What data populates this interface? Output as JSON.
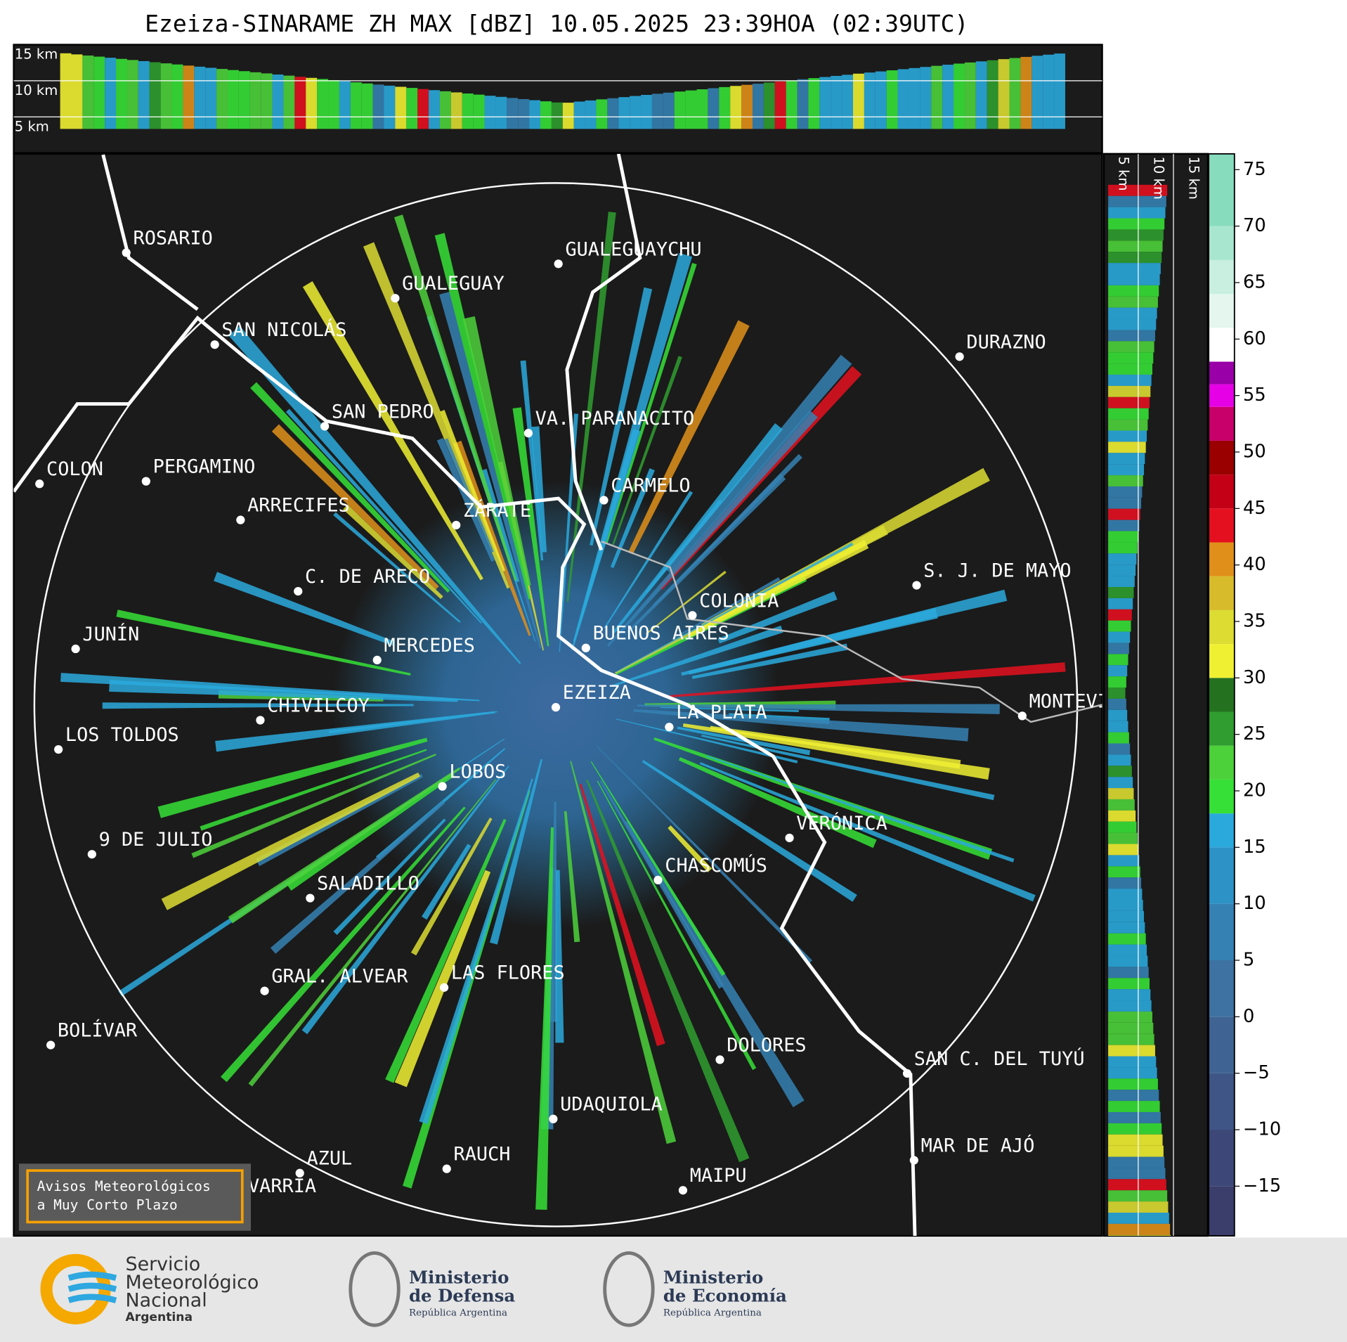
{
  "title": "Ezeiza-SINARAME ZH MAX [dBZ] 10.05.2025 23:39HOA (02:39UTC)",
  "top_panel": {
    "height_labels": [
      "15 km",
      "10 km",
      "5 km"
    ]
  },
  "side_panel": {
    "height_labels": [
      "5 km",
      "10 km",
      "15 km"
    ]
  },
  "cities": [
    "ROSARIO",
    "GUALEGUAYCHU",
    "GUALEGUAY",
    "SAN NICOLÁS",
    "DURAZNO",
    "SAN PEDRO",
    "VA. PARANACITO",
    "COLON",
    "PERGAMINO",
    "CARMELO",
    "ARRECIFES",
    "ZÁRATE",
    "C. DE ARECO",
    "S. J. DE MAYO",
    "COLONIA",
    "JUNÍN",
    "BUENOS AIRES",
    "MERCEDES",
    "MONTEVIDEO",
    "EZEIZA",
    "CHIVILCOY",
    "LA PLATA",
    "LOS TOLDOS",
    "LOBOS",
    "VERÓNICA",
    "9 DE JULIO",
    "CHASCOMÚS",
    "SALADILLO",
    "GRAL. ALVEAR",
    "LAS FLORES",
    "BOLÍVAR",
    "DOLORES",
    "SAN C. DEL TUYÚ",
    "UDAQUIOLA",
    "MAR DE AJÓ",
    "AZUL",
    "RAUCH",
    "OLAVARRÍA",
    "MAIPU"
  ],
  "warning_box": [
    "Avisos Meteorológicos",
    "a Muy Corto Plazo"
  ],
  "colorbar": {
    "lim": [
      -19.4,
      76.4
    ],
    "ticks": [
      {
        "value": -15,
        "label": "−15"
      },
      {
        "value": -10,
        "label": "−10"
      },
      {
        "value": -5,
        "label": "−5"
      },
      0,
      5,
      10,
      15,
      20,
      25,
      30,
      35,
      40,
      45,
      50,
      55,
      60,
      65,
      70,
      75
    ],
    "levels": [
      -20,
      -15,
      -10,
      -5,
      0,
      5,
      10,
      15,
      18,
      21,
      24,
      27,
      30,
      33,
      36,
      39,
      42,
      45,
      48,
      51,
      54,
      56,
      58,
      61,
      64,
      67,
      70,
      77
    ],
    "colors": [
      "#3b3d6b",
      "#3d4878",
      "#3e5586",
      "#3f6493",
      "#3d72a2",
      "#3581b3",
      "#2d92c6",
      "#2aa9dc",
      "#36e036",
      "#4cd13a",
      "#2f9d2f",
      "#24721f",
      "#f0f032",
      "#dcdc32",
      "#d8bb2a",
      "#e0901a",
      "#e4101f",
      "#c40016",
      "#9a0000",
      "#c8006a",
      "#e600e6",
      "#9a00a8",
      "#ffffff",
      "#e4f6ee",
      "#c8efe0",
      "#a8e6cf",
      "#88dcbe"
    ]
  },
  "footer": {
    "smn": [
      "Servicio",
      "Meteorológico",
      "Nacional",
      "Argentina"
    ],
    "defensa": [
      "Ministerio",
      "de Defensa",
      "República Argentina"
    ],
    "economia": [
      "Ministerio",
      "de Economía",
      "República Argentina"
    ]
  }
}
